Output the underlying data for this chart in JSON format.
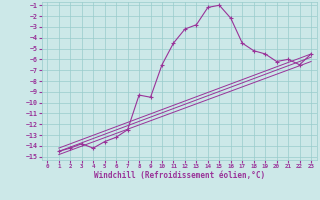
{
  "bg_color": "#cce8e8",
  "grid_color": "#99cccc",
  "line_color": "#993399",
  "xlabel": "Windchill (Refroidissement éolien,°C)",
  "xlim": [
    0,
    23
  ],
  "ylim": [
    -15,
    -1
  ],
  "xticks": [
    0,
    1,
    2,
    3,
    4,
    5,
    6,
    7,
    8,
    9,
    10,
    11,
    12,
    13,
    14,
    15,
    16,
    17,
    18,
    19,
    20,
    21,
    22,
    23
  ],
  "yticks": [
    -1,
    -2,
    -3,
    -4,
    -5,
    -6,
    -7,
    -8,
    -9,
    -10,
    -11,
    -12,
    -13,
    -14,
    -15
  ],
  "main_line": {
    "x": [
      1,
      2,
      3,
      4,
      5,
      6,
      7,
      8,
      9,
      10,
      11,
      12,
      13,
      14,
      15,
      16,
      17,
      18,
      19,
      20,
      21,
      22,
      23
    ],
    "y": [
      -14.5,
      -14.2,
      -13.8,
      -14.2,
      -13.6,
      -13.2,
      -12.5,
      -9.3,
      -9.5,
      -6.5,
      -4.5,
      -3.2,
      -2.8,
      -1.2,
      -1.0,
      -2.2,
      -4.5,
      -5.2,
      -5.5,
      -6.2,
      -6.0,
      -6.5,
      -5.5
    ]
  },
  "straight_lines": [
    [
      -14.2,
      -5.5
    ],
    [
      -14.5,
      -5.8
    ],
    [
      -14.8,
      -6.2
    ]
  ]
}
